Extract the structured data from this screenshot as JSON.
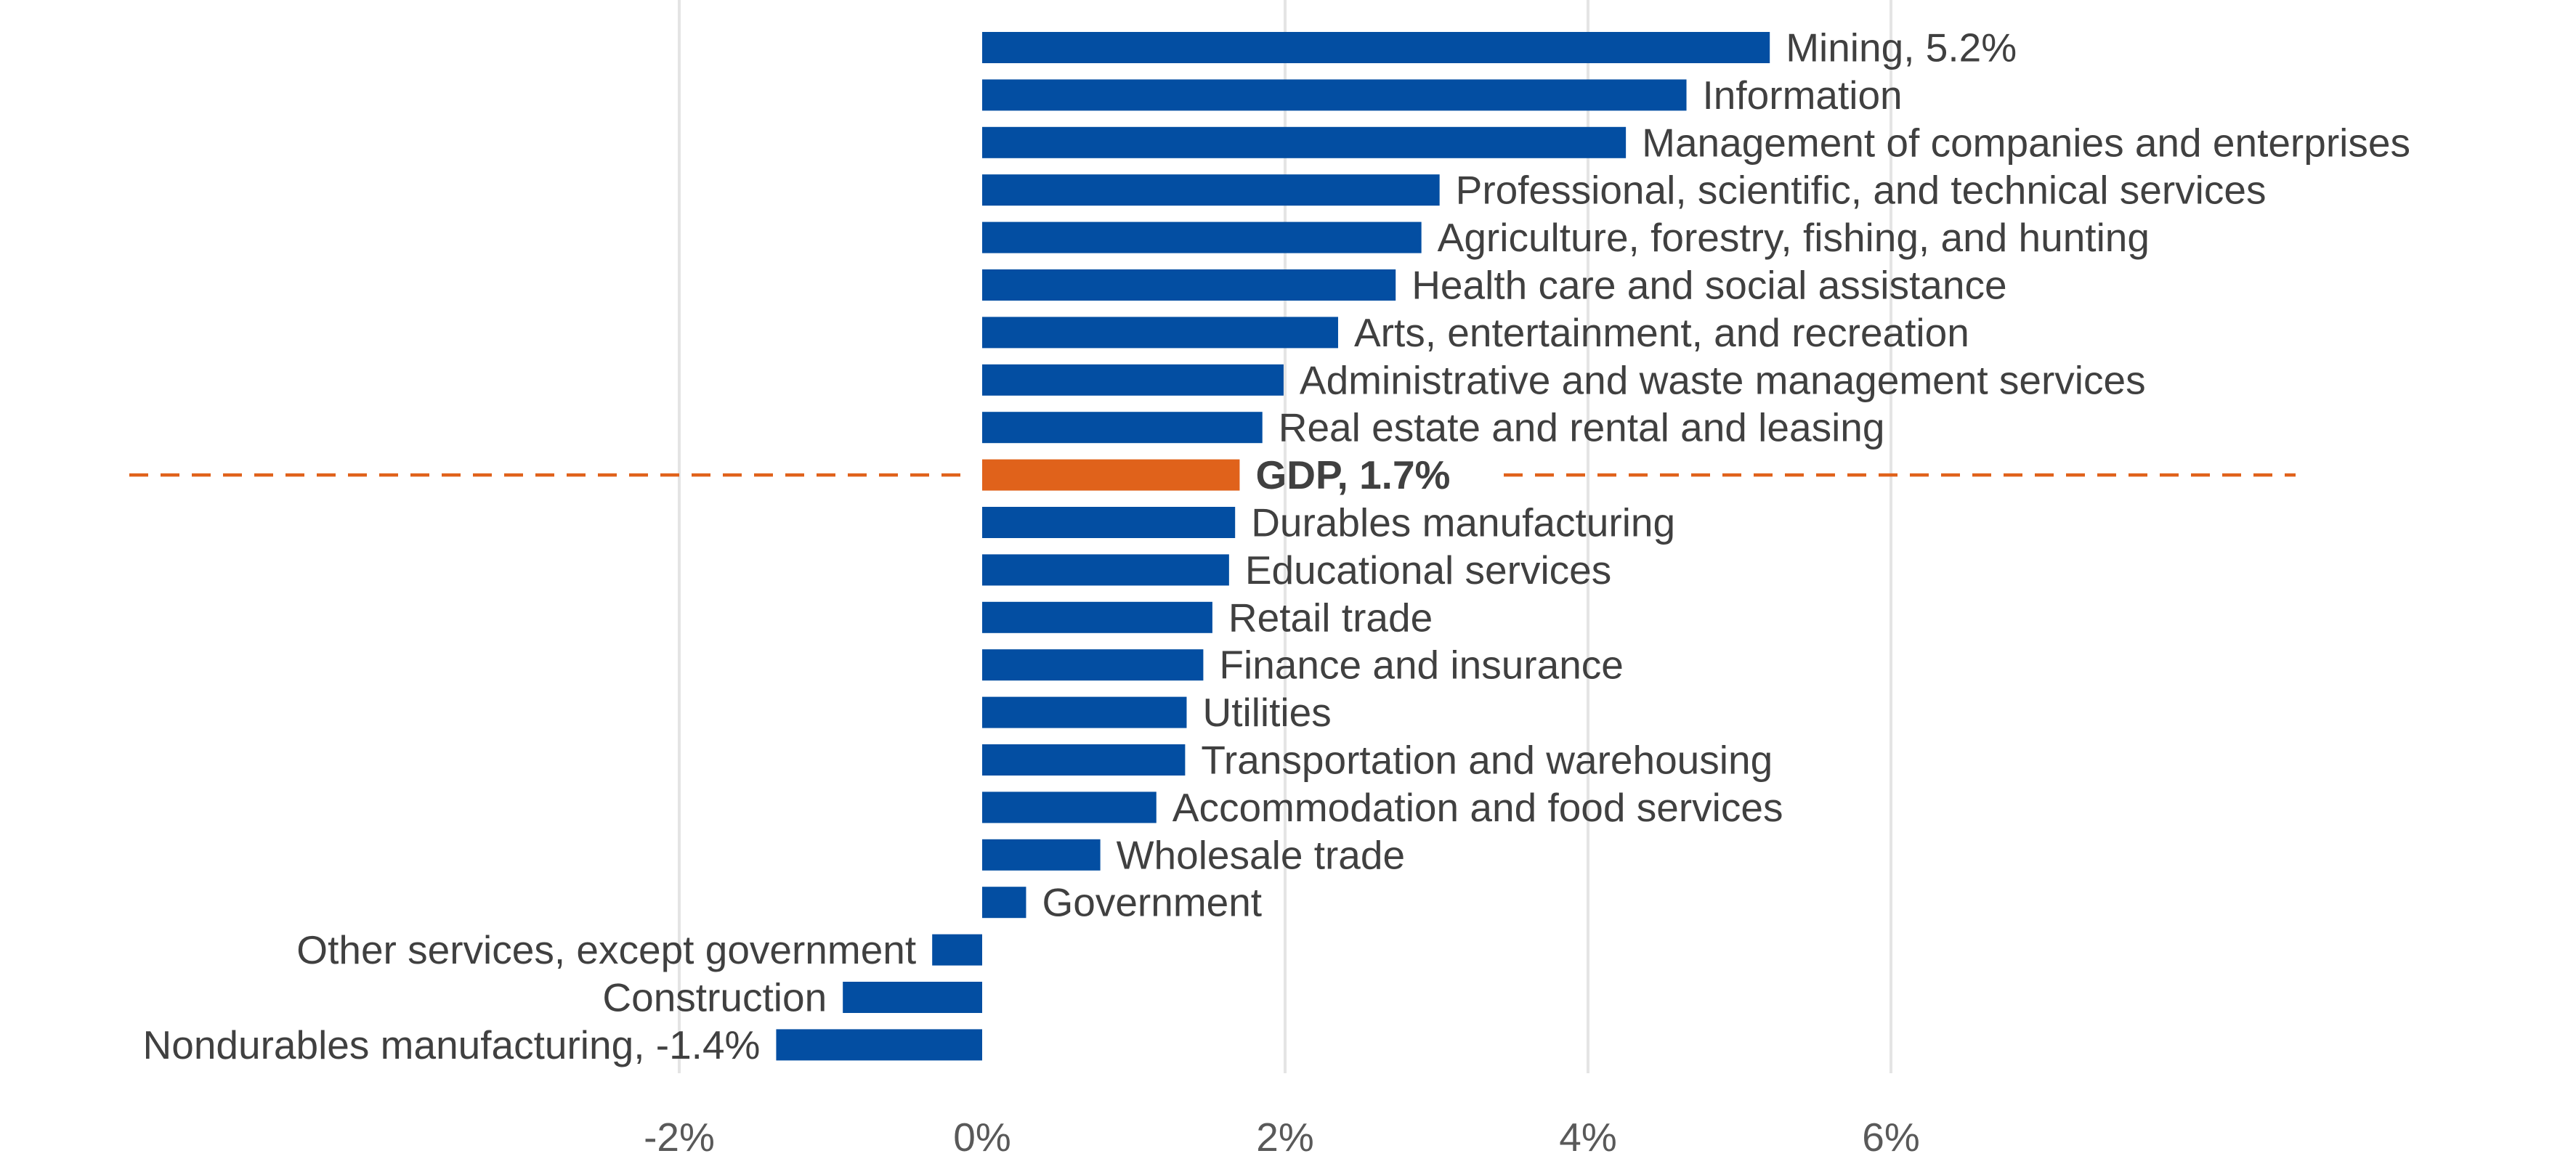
{
  "chart_data": {
    "type": "bar",
    "orientation": "horizontal",
    "title": "",
    "xlabel": "",
    "ylabel": "",
    "xlim": [
      -2,
      8
    ],
    "grid": true,
    "legend": "none",
    "xticks": [
      {
        "value": -2,
        "label": "-2%"
      },
      {
        "value": 0,
        "label": "0%"
      },
      {
        "value": 2,
        "label": "2%"
      },
      {
        "value": 4,
        "label": "4%"
      },
      {
        "value": 6,
        "label": "6%"
      }
    ],
    "categories": [
      "Mining, 5.2%",
      "Information",
      "Management of companies and enterprises",
      "Professional, scientific, and technical services",
      "Agriculture, forestry, fishing, and hunting",
      "Health care and social assistance",
      "Arts, entertainment, and recreation",
      "Administrative and waste management services",
      "Real estate and rental and leasing",
      "GDP, 1.7%",
      "Durables manufacturing",
      "Educational services",
      "Retail trade",
      "Finance and insurance",
      "Utilities",
      "Transportation and warehousing",
      "Accommodation and food services",
      "Wholesale trade",
      "Government",
      "Other services, except government",
      "Construction",
      "Nondurables manufacturing, -1.4%"
    ],
    "values": [
      5.2,
      4.65,
      4.25,
      3.02,
      2.9,
      2.73,
      2.35,
      1.99,
      1.85,
      1.7,
      1.67,
      1.63,
      1.52,
      1.46,
      1.35,
      1.34,
      1.15,
      0.78,
      0.29,
      -0.33,
      -0.92,
      -1.36
    ],
    "highlight_index": 9,
    "reference_line": {
      "value": 1.7,
      "label_index": 9
    },
    "colors": {
      "bar": "#034EA2",
      "highlight": "#E0621B",
      "reference_line": "#E0621B",
      "gridline": "#E4E4E4"
    }
  }
}
